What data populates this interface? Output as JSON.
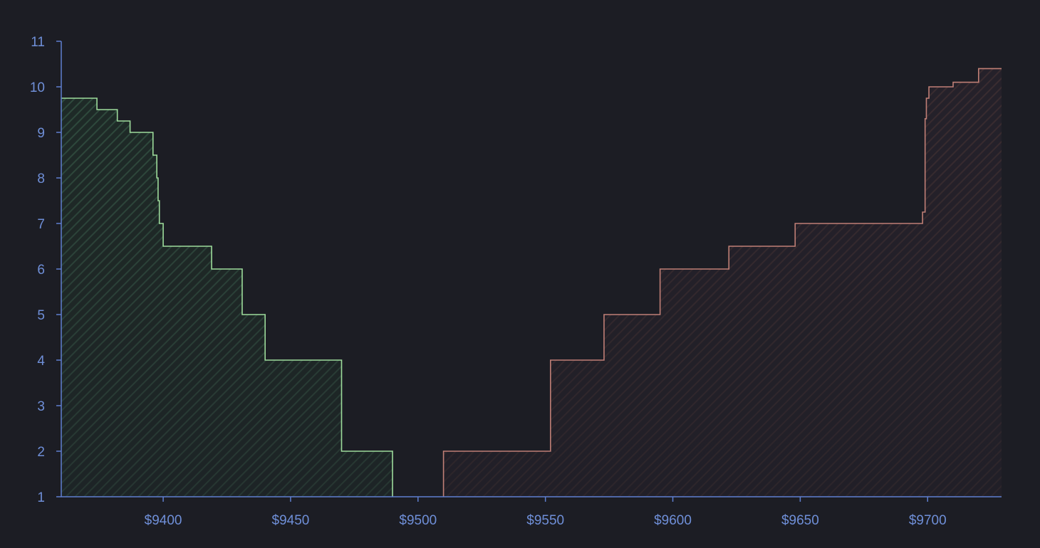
{
  "chart_data": {
    "type": "area",
    "subtype": "depth-chart",
    "title": "",
    "xlabel": "",
    "ylabel": "",
    "xlim": [
      9360,
      9729
    ],
    "ylim": [
      1,
      11
    ],
    "x_ticks": [
      9400,
      9450,
      9500,
      9550,
      9600,
      9650,
      9700
    ],
    "x_tick_labels": [
      "$9400",
      "$9450",
      "$9500",
      "$9550",
      "$9600",
      "$9650",
      "$9700"
    ],
    "y_ticks": [
      1,
      2,
      3,
      4,
      5,
      6,
      7,
      8,
      9,
      10,
      11
    ],
    "y_tick_labels": [
      "1",
      "2",
      "3",
      "4",
      "5",
      "6",
      "7",
      "8",
      "9",
      "10",
      "11"
    ],
    "grid": false,
    "legend": "none",
    "step": "stepped",
    "series": [
      {
        "side": "bids",
        "color": "#9ddb9b",
        "points": [
          [
            9360,
            9.75
          ],
          [
            9374,
            9.75
          ],
          [
            9374,
            9.5
          ],
          [
            9382,
            9.5
          ],
          [
            9382,
            9.25
          ],
          [
            9387,
            9.25
          ],
          [
            9387,
            9.0
          ],
          [
            9396,
            9.0
          ],
          [
            9396,
            8.5
          ],
          [
            9397.5,
            8.5
          ],
          [
            9397.5,
            8.0
          ],
          [
            9398,
            8.0
          ],
          [
            9398,
            7.5
          ],
          [
            9398.5,
            7.5
          ],
          [
            9398.5,
            7.0
          ],
          [
            9400,
            7.0
          ],
          [
            9400,
            6.5
          ],
          [
            9419,
            6.5
          ],
          [
            9419,
            6.0
          ],
          [
            9431,
            6.0
          ],
          [
            9431,
            5.0
          ],
          [
            9440,
            5.0
          ],
          [
            9440,
            4.0
          ],
          [
            9470,
            4.0
          ],
          [
            9470,
            2.0
          ],
          [
            9490,
            2.0
          ],
          [
            9490,
            1.0
          ]
        ]
      },
      {
        "side": "asks",
        "color": "#c07f76",
        "points": [
          [
            9510,
            1.0
          ],
          [
            9510,
            2.0
          ],
          [
            9552,
            2.0
          ],
          [
            9552,
            4.0
          ],
          [
            9573,
            4.0
          ],
          [
            9573,
            5.0
          ],
          [
            9595,
            5.0
          ],
          [
            9595,
            6.0
          ],
          [
            9622,
            6.0
          ],
          [
            9622,
            6.5
          ],
          [
            9648,
            6.5
          ],
          [
            9648,
            7.0
          ],
          [
            9698,
            7.0
          ],
          [
            9698,
            7.25
          ],
          [
            9699,
            7.25
          ],
          [
            9699,
            9.3
          ],
          [
            9699.5,
            9.3
          ],
          [
            9699.5,
            9.75
          ],
          [
            9700.5,
            9.75
          ],
          [
            9700.5,
            10.0
          ],
          [
            9710,
            10.0
          ],
          [
            9710,
            10.1
          ],
          [
            9720,
            10.1
          ],
          [
            9720,
            10.4
          ],
          [
            9729,
            10.4
          ]
        ]
      }
    ]
  }
}
